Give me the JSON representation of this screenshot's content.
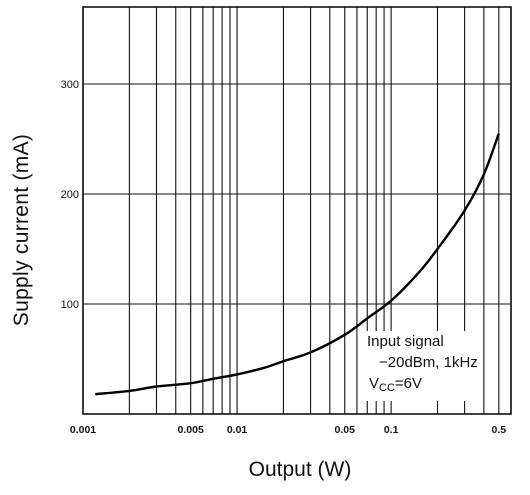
{
  "chart_data": {
    "type": "line",
    "title": "",
    "xlabel": "Output (W)",
    "ylabel": "Supply current (mA)",
    "x_scale": "log",
    "xlim": [
      0.001,
      0.6
    ],
    "ylim": [
      0,
      370
    ],
    "x_tick_labels": [
      "0.001",
      "0.005",
      "0.01",
      "0.05",
      "0.1",
      "0.5"
    ],
    "x_tick_values": [
      0.001,
      0.005,
      0.01,
      0.05,
      0.1,
      0.5
    ],
    "y_tick_labels": [
      "100",
      "200",
      "300"
    ],
    "y_tick_values": [
      100,
      200,
      300
    ],
    "grid": true,
    "legend": "none",
    "annotation": {
      "line1": "Input signal",
      "line2": "−20dBm, 1kHz",
      "vcc_symbol": "V",
      "vcc_sub": "CC",
      "vcc_value": "=6V"
    },
    "series": [
      {
        "x": [
          0.0012,
          0.002,
          0.003,
          0.005,
          0.007,
          0.01,
          0.015,
          0.02,
          0.03,
          0.05,
          0.07,
          0.1,
          0.15,
          0.2,
          0.3,
          0.4,
          0.5
        ],
        "y": [
          18,
          21,
          25,
          28,
          32,
          36,
          42,
          48,
          56,
          72,
          87,
          103,
          128,
          150,
          185,
          218,
          255
        ]
      }
    ]
  }
}
